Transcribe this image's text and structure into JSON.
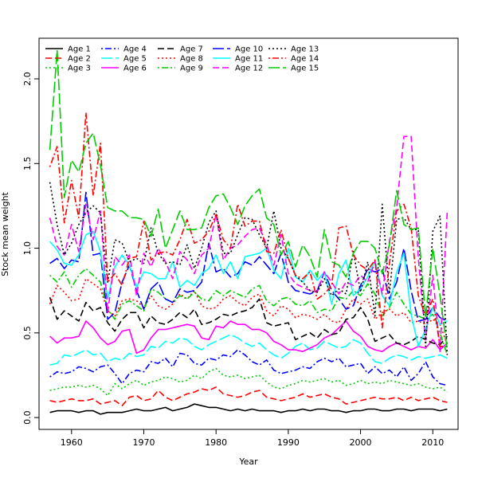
{
  "chart_data": {
    "type": "line",
    "title": "",
    "xlabel": "Year",
    "ylabel": "Stock mean weight",
    "xlim": [
      1955.5,
      2013.5
    ],
    "ylim": [
      -0.07,
      2.24
    ],
    "xticks": [
      1960,
      1970,
      1980,
      1990,
      2000,
      2010
    ],
    "yticks": [
      0.0,
      0.5,
      1.0,
      1.5,
      2.0
    ],
    "ytick_labels": [
      "0.0",
      "0.5",
      "1.0",
      "1.5",
      "2.0"
    ],
    "x": [
      1957,
      1958,
      1959,
      1960,
      1961,
      1962,
      1963,
      1964,
      1965,
      1966,
      1967,
      1968,
      1969,
      1970,
      1971,
      1972,
      1973,
      1974,
      1975,
      1976,
      1977,
      1978,
      1979,
      1980,
      1981,
      1982,
      1983,
      1984,
      1985,
      1986,
      1987,
      1988,
      1989,
      1990,
      1991,
      1992,
      1993,
      1994,
      1995,
      1996,
      1997,
      1998,
      1999,
      2000,
      2001,
      2002,
      2003,
      2004,
      2005,
      2006,
      2007,
      2008,
      2009,
      2010,
      2011,
      2012
    ],
    "legend_position": "top-left",
    "series": [
      {
        "name": "Age 1",
        "color": "#000000",
        "dash": "solid",
        "values": [
          0.03,
          0.04,
          0.04,
          0.04,
          0.03,
          0.04,
          0.04,
          0.02,
          0.03,
          0.03,
          0.03,
          0.04,
          0.05,
          0.04,
          0.04,
          0.05,
          0.06,
          0.04,
          0.05,
          0.06,
          0.08,
          0.07,
          0.06,
          0.06,
          0.05,
          0.04,
          0.05,
          0.04,
          0.05,
          0.04,
          0.04,
          0.04,
          0.03,
          0.04,
          0.04,
          0.05,
          0.04,
          0.05,
          0.05,
          0.04,
          0.04,
          0.03,
          0.04,
          0.04,
          0.05,
          0.05,
          0.04,
          0.04,
          0.05,
          0.05,
          0.04,
          0.05,
          0.05,
          0.05,
          0.04,
          0.05
        ]
      },
      {
        "name": "Age 2",
        "color": "#ff0000",
        "dash": "dashed",
        "values": [
          0.1,
          0.09,
          0.1,
          0.11,
          0.1,
          0.1,
          0.11,
          0.08,
          0.09,
          0.1,
          0.07,
          0.12,
          0.13,
          0.1,
          0.11,
          0.16,
          0.12,
          0.1,
          0.12,
          0.14,
          0.15,
          0.17,
          0.16,
          0.18,
          0.14,
          0.13,
          0.12,
          0.13,
          0.15,
          0.16,
          0.12,
          0.11,
          0.1,
          0.11,
          0.12,
          0.14,
          0.12,
          0.13,
          0.14,
          0.12,
          0.11,
          0.08,
          0.09,
          0.1,
          0.11,
          0.12,
          0.11,
          0.11,
          0.12,
          0.1,
          0.12,
          0.1,
          0.11,
          0.12,
          0.1,
          0.09
        ]
      },
      {
        "name": "Age 3",
        "color": "#00cd00",
        "dash": "dotted",
        "values": [
          0.16,
          0.17,
          0.18,
          0.18,
          0.19,
          0.18,
          0.19,
          0.17,
          0.13,
          0.2,
          0.17,
          0.2,
          0.22,
          0.19,
          0.21,
          0.22,
          0.24,
          0.23,
          0.21,
          0.22,
          0.25,
          0.23,
          0.27,
          0.29,
          0.25,
          0.24,
          0.25,
          0.23,
          0.24,
          0.25,
          0.21,
          0.18,
          0.17,
          0.19,
          0.2,
          0.22,
          0.21,
          0.22,
          0.23,
          0.21,
          0.22,
          0.19,
          0.2,
          0.22,
          0.2,
          0.21,
          0.2,
          0.22,
          0.21,
          0.2,
          0.19,
          0.2,
          0.18,
          0.17,
          0.18,
          0.15
        ]
      },
      {
        "name": "Age 4",
        "color": "#0000ff",
        "dash": "dashdot",
        "values": [
          0.24,
          0.27,
          0.26,
          0.27,
          0.3,
          0.29,
          0.27,
          0.3,
          0.31,
          0.26,
          0.2,
          0.26,
          0.28,
          0.27,
          0.33,
          0.32,
          0.35,
          0.3,
          0.38,
          0.37,
          0.32,
          0.31,
          0.35,
          0.34,
          0.37,
          0.36,
          0.4,
          0.37,
          0.33,
          0.31,
          0.34,
          0.28,
          0.26,
          0.27,
          0.28,
          0.3,
          0.29,
          0.33,
          0.35,
          0.33,
          0.35,
          0.3,
          0.31,
          0.32,
          0.26,
          0.3,
          0.26,
          0.28,
          0.24,
          0.3,
          0.22,
          0.26,
          0.33,
          0.24,
          0.2,
          0.19
        ]
      },
      {
        "name": "Age 5",
        "color": "#00ffff",
        "dash": "longdash",
        "values": [
          0.31,
          0.32,
          0.37,
          0.36,
          0.38,
          0.4,
          0.37,
          0.38,
          0.33,
          0.35,
          0.34,
          0.38,
          0.36,
          0.37,
          0.42,
          0.41,
          0.45,
          0.44,
          0.47,
          0.46,
          0.42,
          0.4,
          0.43,
          0.45,
          0.47,
          0.49,
          0.47,
          0.44,
          0.42,
          0.44,
          0.4,
          0.37,
          0.35,
          0.38,
          0.42,
          0.44,
          0.4,
          0.41,
          0.45,
          0.43,
          0.41,
          0.42,
          0.46,
          0.44,
          0.38,
          0.33,
          0.32,
          0.35,
          0.37,
          0.36,
          0.34,
          0.36,
          0.35,
          0.36,
          0.37,
          0.35
        ]
      },
      {
        "name": "Age 6",
        "color": "#ff00ff",
        "dash": "solid",
        "values": [
          0.48,
          0.44,
          0.47,
          0.47,
          0.48,
          0.57,
          0.53,
          0.47,
          0.43,
          0.45,
          0.51,
          0.52,
          0.38,
          0.4,
          0.47,
          0.52,
          0.52,
          0.53,
          0.54,
          0.55,
          0.54,
          0.47,
          0.46,
          0.54,
          0.53,
          0.57,
          0.55,
          0.55,
          0.52,
          0.52,
          0.5,
          0.45,
          0.43,
          0.4,
          0.4,
          0.39,
          0.41,
          0.43,
          0.47,
          0.49,
          0.53,
          0.57,
          0.51,
          0.48,
          0.42,
          0.4,
          0.39,
          0.42,
          0.44,
          0.42,
          0.4,
          0.42,
          0.41,
          0.46,
          0.4,
          0.44
        ]
      },
      {
        "name": "Age 7",
        "color": "#000000",
        "dash": "dashed",
        "values": [
          0.71,
          0.58,
          0.63,
          0.6,
          0.57,
          0.68,
          0.63,
          0.65,
          0.56,
          0.51,
          0.58,
          0.62,
          0.62,
          0.53,
          0.6,
          0.56,
          0.55,
          0.58,
          0.62,
          0.59,
          0.64,
          0.55,
          0.56,
          0.58,
          0.61,
          0.6,
          0.62,
          0.63,
          0.65,
          0.7,
          0.56,
          0.54,
          0.55,
          0.56,
          0.46,
          0.48,
          0.5,
          0.47,
          0.52,
          0.49,
          0.5,
          0.58,
          0.59,
          0.65,
          0.58,
          0.45,
          0.47,
          0.49,
          0.44,
          0.43,
          0.45,
          0.48,
          0.46,
          0.44,
          0.43,
          0.48
        ]
      },
      {
        "name": "Age 8",
        "color": "#ff0000",
        "dash": "dotted",
        "values": [
          0.67,
          0.78,
          0.74,
          0.69,
          0.7,
          0.82,
          0.79,
          0.76,
          0.63,
          0.6,
          0.69,
          0.7,
          0.69,
          0.65,
          0.72,
          0.66,
          0.64,
          0.67,
          0.73,
          0.7,
          0.75,
          0.66,
          0.64,
          0.65,
          0.7,
          0.72,
          0.68,
          0.66,
          0.71,
          0.73,
          0.63,
          0.6,
          0.66,
          0.64,
          0.59,
          0.61,
          0.6,
          0.58,
          0.61,
          0.57,
          0.56,
          0.64,
          0.7,
          0.67,
          0.7,
          0.58,
          0.62,
          0.64,
          0.6,
          0.62,
          0.56,
          0.57,
          0.55,
          0.58,
          0.55,
          0.43
        ]
      },
      {
        "name": "Age 9",
        "color": "#00cd00",
        "dash": "dashdot",
        "values": [
          0.84,
          0.8,
          0.86,
          0.77,
          0.84,
          0.88,
          0.84,
          0.8,
          0.64,
          0.58,
          0.67,
          0.69,
          0.66,
          0.63,
          0.76,
          0.74,
          0.7,
          0.68,
          0.72,
          0.7,
          0.74,
          0.7,
          0.69,
          0.75,
          0.72,
          0.75,
          0.73,
          0.71,
          0.76,
          0.78,
          0.69,
          0.66,
          0.7,
          0.71,
          0.67,
          0.66,
          0.69,
          0.62,
          0.64,
          0.63,
          0.71,
          0.7,
          0.75,
          0.72,
          0.79,
          0.73,
          0.6,
          0.65,
          0.74,
          0.67,
          0.61,
          0.6,
          0.58,
          0.61,
          0.5,
          0.37
        ]
      },
      {
        "name": "Age 10",
        "color": "#0000ff",
        "dash": "longdash",
        "values": [
          0.91,
          0.94,
          0.88,
          0.93,
          0.92,
          1.33,
          0.96,
          0.97,
          0.58,
          0.62,
          0.8,
          0.9,
          0.75,
          0.64,
          0.76,
          0.8,
          0.7,
          0.68,
          0.76,
          0.74,
          0.75,
          0.8,
          1.03,
          0.86,
          0.88,
          0.83,
          0.85,
          0.92,
          0.9,
          0.95,
          0.9,
          0.85,
          0.97,
          0.8,
          0.75,
          0.74,
          0.73,
          0.75,
          0.86,
          0.75,
          0.7,
          0.64,
          0.66,
          0.78,
          0.88,
          0.86,
          0.88,
          0.7,
          0.8,
          1.0,
          0.75,
          0.57,
          0.58,
          0.65,
          0.59,
          0.57
        ]
      },
      {
        "name": "Age 11",
        "color": "#00ffff",
        "dash": "solid",
        "values": [
          1.04,
          0.99,
          0.91,
          0.9,
          0.96,
          1.08,
          1.1,
          0.98,
          0.7,
          0.89,
          0.96,
          0.9,
          0.77,
          0.86,
          0.85,
          0.82,
          0.82,
          0.92,
          0.77,
          0.81,
          0.78,
          0.85,
          0.88,
          0.96,
          0.85,
          0.92,
          0.82,
          0.95,
          0.96,
          0.97,
          1.0,
          0.87,
          0.82,
          1.0,
          0.83,
          0.8,
          0.87,
          0.81,
          0.86,
          0.67,
          0.85,
          0.93,
          0.72,
          0.76,
          0.83,
          0.93,
          0.72,
          0.66,
          0.86,
          0.97,
          0.61,
          0.42,
          0.52,
          0.65,
          0.55,
          0.57
        ]
      },
      {
        "name": "Age 12",
        "color": "#ff00ff",
        "dash": "dashed",
        "values": [
          1.18,
          1.01,
          0.96,
          1.14,
          0.98,
          1.26,
          1.05,
          1.22,
          0.62,
          0.95,
          0.9,
          0.96,
          0.72,
          0.97,
          0.89,
          1.0,
          0.92,
          0.82,
          0.98,
          0.93,
          0.85,
          0.96,
          1.0,
          1.2,
          0.93,
          1.0,
          1.02,
          1.07,
          1.11,
          1.12,
          1.02,
          0.9,
          1.08,
          0.85,
          0.79,
          0.77,
          0.75,
          0.74,
          0.86,
          0.8,
          0.73,
          0.8,
          0.78,
          0.84,
          0.8,
          0.92,
          0.73,
          1.04,
          1.24,
          1.66,
          1.66,
          0.94,
          0.46,
          0.84,
          0.39,
          1.22
        ]
      },
      {
        "name": "Age 13",
        "color": "#000000",
        "dash": "dotted",
        "values": [
          1.39,
          1.14,
          0.96,
          1.03,
          1.14,
          1.21,
          1.25,
          1.21,
          0.8,
          1.05,
          1.03,
          0.92,
          0.94,
          0.91,
          1.12,
          0.97,
          0.91,
          0.92,
          0.9,
          1.02,
          0.88,
          1.0,
          1.15,
          1.22,
          0.97,
          0.97,
          1.08,
          1.18,
          1.17,
          1.08,
          1.0,
          1.22,
          1.0,
          0.94,
          0.84,
          0.8,
          0.75,
          0.74,
          0.82,
          0.72,
          0.76,
          0.73,
          0.98,
          0.74,
          0.92,
          0.6,
          1.26,
          0.73,
          1.17,
          1.18,
          1.11,
          1.11,
          0.42,
          1.1,
          1.19,
          0.37
        ]
      },
      {
        "name": "Age 14",
        "color": "#ff0000",
        "dash": "dashdot",
        "values": [
          1.48,
          1.6,
          1.15,
          1.4,
          1.18,
          1.8,
          1.31,
          1.62,
          0.8,
          0.85,
          0.78,
          0.94,
          0.95,
          1.16,
          0.93,
          0.97,
          0.98,
          0.96,
          1.05,
          1.17,
          1.03,
          1.05,
          1.1,
          1.2,
          1.05,
          1.0,
          1.26,
          1.13,
          1.16,
          1.16,
          0.98,
          0.97,
          1.11,
          0.94,
          0.84,
          0.82,
          0.86,
          0.7,
          0.73,
          0.78,
          1.12,
          1.13,
          0.96,
          0.9,
          0.87,
          0.93,
          0.53,
          0.91,
          1.22,
          1.26,
          1.12,
          0.72,
          0.6,
          0.7,
          0.42,
          0.42
        ]
      },
      {
        "name": "Age 15",
        "color": "#00cd00",
        "dash": "longdash",
        "values": [
          1.58,
          2.17,
          1.3,
          1.52,
          1.45,
          1.62,
          1.68,
          1.49,
          1.24,
          1.22,
          1.22,
          1.18,
          1.18,
          1.17,
          1.07,
          1.23,
          1.0,
          1.11,
          1.22,
          1.11,
          1.11,
          1.12,
          1.24,
          1.31,
          1.32,
          1.24,
          1.14,
          1.25,
          1.31,
          1.35,
          1.18,
          1.14,
          0.96,
          1.04,
          0.89,
          1.02,
          0.95,
          0.83,
          1.11,
          0.92,
          0.9,
          0.83,
          0.97,
          1.04,
          1.04,
          1.0,
          0.85,
          1.02,
          1.34,
          1.14,
          1.11,
          1.12,
          0.59,
          1.0,
          0.72,
          0.4
        ]
      }
    ]
  }
}
